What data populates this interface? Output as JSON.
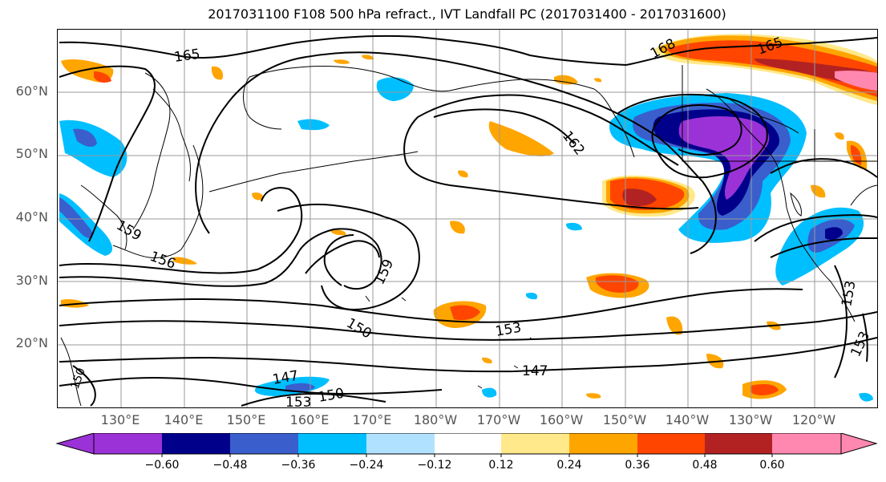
{
  "title": "2017031100 F108 500 hPa refract., IVT Landfall PC (2017031400 - 2017031600)",
  "lat_labels": [
    "60°N",
    "50°N",
    "40°N",
    "30°N",
    "20°N"
  ],
  "lon_labels": [
    "130°E",
    "140°E",
    "150°E",
    "160°E",
    "170°E",
    "180°W",
    "170°W",
    "160°W",
    "150°W",
    "140°W",
    "130°W",
    "120°W"
  ],
  "contour_labels": [
    "165",
    "165",
    "168",
    "162",
    "159",
    "156",
    "159",
    "150",
    "153",
    "147",
    "147",
    "153",
    "150",
    "153",
    "153",
    "150"
  ],
  "colorbar": {
    "ticks": [
      "−0.60",
      "−0.48",
      "−0.36",
      "−0.24",
      "−0.12",
      "0.12",
      "0.24",
      "0.36",
      "0.48",
      "0.60"
    ],
    "colors": [
      "#9b32d7",
      "#00008b",
      "#3a5fcd",
      "#00bfff",
      "#b0e2ff",
      "#ffffff",
      "#ffe98a",
      "#ffa500",
      "#ff4500",
      "#b22222",
      "#ff88b0"
    ]
  },
  "colors": {
    "contour": "#000000",
    "grid": "#9a9a9a",
    "axis_label": "#555555"
  }
}
